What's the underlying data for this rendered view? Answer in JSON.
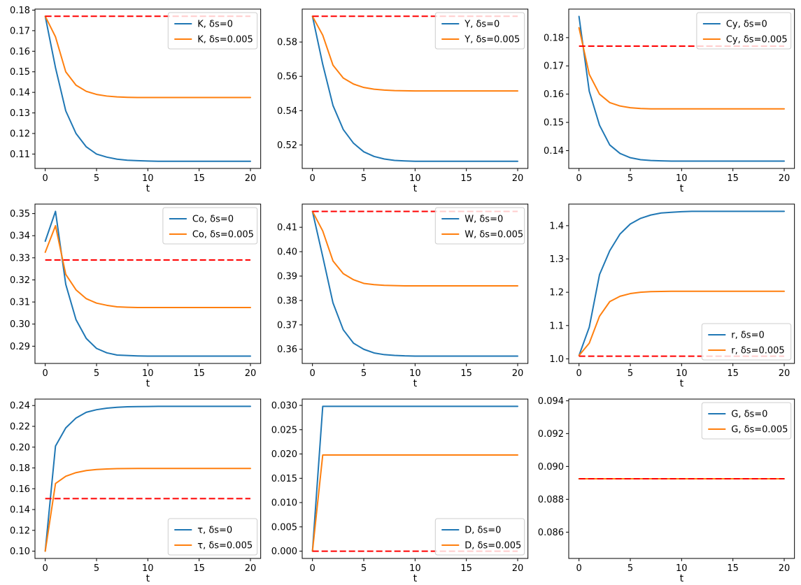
{
  "figure": {
    "background": "#ffffff",
    "xlabel": "t",
    "xlim": [
      -1,
      21
    ],
    "xticks": [
      0,
      5,
      10,
      15,
      20
    ],
    "colors": {
      "series1": "#1f77b4",
      "series2": "#ff7f0e",
      "steady_state_dashed": "#ff0000"
    },
    "legend_labels_pattern": "var, δs=0 / var, δs=0.005",
    "grid": false
  },
  "chart_data": [
    {
      "type": "line",
      "name": "K",
      "xlabel": "t",
      "legend_pos": "upper-right",
      "x": [
        0,
        1,
        2,
        3,
        4,
        5,
        6,
        7,
        8,
        9,
        10,
        11,
        12,
        13,
        14,
        15,
        16,
        17,
        18,
        19,
        20
      ],
      "ylim": [
        0.103,
        0.1805
      ],
      "yticks": [
        0.11,
        0.12,
        0.13,
        0.14,
        0.15,
        0.16,
        0.17,
        0.18
      ],
      "ytick_decimals": 2,
      "dashed_value": 0.177,
      "series": [
        {
          "name": "K, δs=0",
          "color": "#1f77b4",
          "values": [
            0.177,
            0.152,
            0.131,
            0.12,
            0.1135,
            0.11,
            0.1085,
            0.1075,
            0.107,
            0.1068,
            0.1066,
            0.1065,
            0.1065,
            0.1065,
            0.1065,
            0.1065,
            0.1065,
            0.1065,
            0.1065,
            0.1065,
            0.1065
          ]
        },
        {
          "name": "K, δs=0.005",
          "color": "#ff7f0e",
          "values": [
            0.177,
            0.167,
            0.15,
            0.1435,
            0.1405,
            0.139,
            0.1382,
            0.1378,
            0.1376,
            0.1375,
            0.1375,
            0.1375,
            0.1375,
            0.1375,
            0.1375,
            0.1375,
            0.1375,
            0.1375,
            0.1375,
            0.1375,
            0.1375
          ]
        }
      ]
    },
    {
      "type": "line",
      "name": "Y",
      "xlabel": "t",
      "legend_pos": "upper-right",
      "x": [
        0,
        1,
        2,
        3,
        4,
        5,
        6,
        7,
        8,
        9,
        10,
        11,
        12,
        13,
        14,
        15,
        16,
        17,
        18,
        19,
        20
      ],
      "ylim": [
        0.5063,
        0.5992
      ],
      "yticks": [
        0.52,
        0.54,
        0.56,
        0.58
      ],
      "ytick_decimals": 2,
      "dashed_value": 0.595,
      "series": [
        {
          "name": "Y, δs=0",
          "color": "#1f77b4",
          "values": [
            0.595,
            0.567,
            0.543,
            0.529,
            0.521,
            0.516,
            0.5133,
            0.5118,
            0.511,
            0.5107,
            0.5105,
            0.5105,
            0.5105,
            0.5105,
            0.5105,
            0.5105,
            0.5105,
            0.5105,
            0.5105,
            0.5105,
            0.5105
          ]
        },
        {
          "name": "Y, δs=0.005",
          "color": "#ff7f0e",
          "values": [
            0.595,
            0.584,
            0.5665,
            0.559,
            0.5555,
            0.5535,
            0.5525,
            0.552,
            0.5517,
            0.5516,
            0.5515,
            0.5515,
            0.5515,
            0.5515,
            0.5515,
            0.5515,
            0.5515,
            0.5515,
            0.5515,
            0.5515,
            0.5515
          ]
        }
      ]
    },
    {
      "type": "line",
      "name": "Cy",
      "xlabel": "t",
      "legend_pos": "upper-right",
      "x": [
        0,
        1,
        2,
        3,
        4,
        5,
        6,
        7,
        8,
        9,
        10,
        11,
        12,
        13,
        14,
        15,
        16,
        17,
        18,
        19,
        20
      ],
      "ylim": [
        0.1337,
        0.1901
      ],
      "yticks": [
        0.14,
        0.15,
        0.16,
        0.17,
        0.18
      ],
      "ytick_decimals": 2,
      "dashed_value": 0.177,
      "series": [
        {
          "name": "Cy, δs=0",
          "color": "#1f77b4",
          "values": [
            0.1875,
            0.161,
            0.149,
            0.142,
            0.139,
            0.1375,
            0.1368,
            0.1365,
            0.1364,
            0.1363,
            0.1363,
            0.1363,
            0.1363,
            0.1363,
            0.1363,
            0.1363,
            0.1363,
            0.1363,
            0.1363,
            0.1363,
            0.1363
          ]
        },
        {
          "name": "Cy, δs=0.005",
          "color": "#ff7f0e",
          "values": [
            0.1835,
            0.167,
            0.16,
            0.157,
            0.1558,
            0.1552,
            0.1549,
            0.1548,
            0.1548,
            0.1548,
            0.1548,
            0.1548,
            0.1548,
            0.1548,
            0.1548,
            0.1548,
            0.1548,
            0.1548,
            0.1548,
            0.1548,
            0.1548
          ]
        }
      ]
    },
    {
      "type": "line",
      "name": "Co",
      "xlabel": "t",
      "legend_pos": "upper-right",
      "x": [
        0,
        1,
        2,
        3,
        4,
        5,
        6,
        7,
        8,
        9,
        10,
        11,
        12,
        13,
        14,
        15,
        16,
        17,
        18,
        19,
        20
      ],
      "ylim": [
        0.2822,
        0.3543
      ],
      "yticks": [
        0.29,
        0.3,
        0.31,
        0.32,
        0.33,
        0.34,
        0.35
      ],
      "ytick_decimals": 2,
      "dashed_value": 0.329,
      "series": [
        {
          "name": "Co, δs=0",
          "color": "#1f77b4",
          "values": [
            0.3375,
            0.351,
            0.318,
            0.302,
            0.2935,
            0.289,
            0.287,
            0.286,
            0.2858,
            0.2856,
            0.2855,
            0.2855,
            0.2855,
            0.2855,
            0.2855,
            0.2855,
            0.2855,
            0.2855,
            0.2855,
            0.2855,
            0.2855
          ]
        },
        {
          "name": "Co, δs=0.005",
          "color": "#ff7f0e",
          "values": [
            0.3325,
            0.3445,
            0.3225,
            0.3155,
            0.3115,
            0.3095,
            0.3085,
            0.3078,
            0.3076,
            0.3075,
            0.3075,
            0.3075,
            0.3075,
            0.3075,
            0.3075,
            0.3075,
            0.3075,
            0.3075,
            0.3075,
            0.3075,
            0.3075
          ]
        }
      ]
    },
    {
      "type": "line",
      "name": "W",
      "xlabel": "t",
      "legend_pos": "upper-right",
      "x": [
        0,
        1,
        2,
        3,
        4,
        5,
        6,
        7,
        8,
        9,
        10,
        11,
        12,
        13,
        14,
        15,
        16,
        17,
        18,
        19,
        20
      ],
      "ylim": [
        0.3542,
        0.4195
      ],
      "yticks": [
        0.36,
        0.37,
        0.38,
        0.39,
        0.4,
        0.41
      ],
      "ytick_decimals": 2,
      "dashed_value": 0.4165,
      "series": [
        {
          "name": "W, δs=0",
          "color": "#1f77b4",
          "values": [
            0.4165,
            0.398,
            0.379,
            0.368,
            0.3625,
            0.36,
            0.3585,
            0.3578,
            0.3575,
            0.3573,
            0.3572,
            0.3572,
            0.3572,
            0.3572,
            0.3572,
            0.3572,
            0.3572,
            0.3572,
            0.3572,
            0.3572,
            0.3572
          ]
        },
        {
          "name": "W, δs=0.005",
          "color": "#ff7f0e",
          "values": [
            0.4165,
            0.4085,
            0.3962,
            0.391,
            0.3885,
            0.387,
            0.3865,
            0.3862,
            0.3861,
            0.386,
            0.386,
            0.386,
            0.386,
            0.386,
            0.386,
            0.386,
            0.386,
            0.386,
            0.386,
            0.386,
            0.386
          ]
        }
      ]
    },
    {
      "type": "line",
      "name": "r",
      "xlabel": "t",
      "legend_pos": "lower-right",
      "x": [
        0,
        1,
        2,
        3,
        4,
        5,
        6,
        7,
        8,
        9,
        10,
        11,
        12,
        13,
        14,
        15,
        16,
        17,
        18,
        19,
        20
      ],
      "ylim": [
        0.9862,
        1.4648
      ],
      "yticks": [
        1.0,
        1.1,
        1.2,
        1.3,
        1.4
      ],
      "ytick_decimals": 1,
      "dashed_value": 1.008,
      "series": [
        {
          "name": "r, δs=0",
          "color": "#1f77b4",
          "values": [
            1.01,
            1.095,
            1.253,
            1.325,
            1.375,
            1.405,
            1.422,
            1.432,
            1.438,
            1.44,
            1.442,
            1.443,
            1.443,
            1.443,
            1.443,
            1.443,
            1.443,
            1.443,
            1.443,
            1.443,
            1.443
          ]
        },
        {
          "name": "r, δs=0.005",
          "color": "#ff7f0e",
          "values": [
            1.01,
            1.047,
            1.128,
            1.172,
            1.188,
            1.196,
            1.2,
            1.202,
            1.2025,
            1.203,
            1.203,
            1.203,
            1.203,
            1.203,
            1.203,
            1.203,
            1.203,
            1.203,
            1.203,
            1.203,
            1.203
          ]
        }
      ]
    },
    {
      "type": "line",
      "name": "τ",
      "xlabel": "t",
      "legend_pos": "lower-right",
      "x": [
        0,
        1,
        2,
        3,
        4,
        5,
        6,
        7,
        8,
        9,
        10,
        11,
        12,
        13,
        14,
        15,
        16,
        17,
        18,
        19,
        20
      ],
      "ylim": [
        0.093,
        0.2462
      ],
      "yticks": [
        0.1,
        0.12,
        0.14,
        0.16,
        0.18,
        0.2,
        0.22,
        0.24
      ],
      "ytick_decimals": 2,
      "dashed_value": 0.1505,
      "series": [
        {
          "name": "τ, δs=0",
          "color": "#1f77b4",
          "values": [
            0.1,
            0.201,
            0.2185,
            0.228,
            0.2335,
            0.236,
            0.2375,
            0.2383,
            0.2388,
            0.239,
            0.2391,
            0.2392,
            0.2392,
            0.2392,
            0.2392,
            0.2392,
            0.2392,
            0.2392,
            0.2392,
            0.2392,
            0.2392
          ]
        },
        {
          "name": "τ, δs=0.005",
          "color": "#ff7f0e",
          "values": [
            0.1,
            0.165,
            0.172,
            0.1755,
            0.1775,
            0.1785,
            0.179,
            0.1793,
            0.1794,
            0.1795,
            0.1795,
            0.1795,
            0.1795,
            0.1795,
            0.1795,
            0.1795,
            0.1795,
            0.1795,
            0.1795,
            0.1795,
            0.1795
          ]
        }
      ]
    },
    {
      "type": "line",
      "name": "D",
      "xlabel": "t",
      "legend_pos": "lower-right",
      "x": [
        0,
        1,
        2,
        3,
        4,
        5,
        6,
        7,
        8,
        9,
        10,
        11,
        12,
        13,
        14,
        15,
        16,
        17,
        18,
        19,
        20
      ],
      "ylim": [
        -0.0015,
        0.0313
      ],
      "yticks": [
        0.0,
        0.005,
        0.01,
        0.015,
        0.02,
        0.025,
        0.03
      ],
      "ytick_decimals": 3,
      "dashed_value": 0.0,
      "series": [
        {
          "name": "D, δs=0",
          "color": "#1f77b4",
          "values": [
            0.0,
            0.0298,
            0.0298,
            0.0298,
            0.0298,
            0.0298,
            0.0298,
            0.0298,
            0.0298,
            0.0298,
            0.0298,
            0.0298,
            0.0298,
            0.0298,
            0.0298,
            0.0298,
            0.0298,
            0.0298,
            0.0298,
            0.0298,
            0.0298
          ]
        },
        {
          "name": "D, δs=0.005",
          "color": "#ff7f0e",
          "values": [
            0.0,
            0.0198,
            0.0198,
            0.0198,
            0.0198,
            0.0198,
            0.0198,
            0.0198,
            0.0198,
            0.0198,
            0.0198,
            0.0198,
            0.0198,
            0.0198,
            0.0198,
            0.0198,
            0.0198,
            0.0198,
            0.0198,
            0.0198,
            0.0198
          ]
        }
      ]
    },
    {
      "type": "line",
      "name": "G",
      "xlabel": "t",
      "legend_pos": "upper-right",
      "x": [
        0,
        1,
        2,
        3,
        4,
        5,
        6,
        7,
        8,
        9,
        10,
        11,
        12,
        13,
        14,
        15,
        16,
        17,
        18,
        19,
        20
      ],
      "ylim": [
        0.0844,
        0.0941
      ],
      "yticks": [
        0.086,
        0.088,
        0.09,
        0.092,
        0.094
      ],
      "ytick_decimals": 3,
      "dashed_value": 0.08925,
      "series": [
        {
          "name": "G, δs=0",
          "color": "#1f77b4",
          "values": [
            0.08925,
            0.08925,
            0.08925,
            0.08925,
            0.08925,
            0.08925,
            0.08925,
            0.08925,
            0.08925,
            0.08925,
            0.08925,
            0.08925,
            0.08925,
            0.08925,
            0.08925,
            0.08925,
            0.08925,
            0.08925,
            0.08925,
            0.08925,
            0.08925
          ]
        },
        {
          "name": "G, δs=0.005",
          "color": "#ff7f0e",
          "values": [
            0.08925,
            0.08925,
            0.08925,
            0.08925,
            0.08925,
            0.08925,
            0.08925,
            0.08925,
            0.08925,
            0.08925,
            0.08925,
            0.08925,
            0.08925,
            0.08925,
            0.08925,
            0.08925,
            0.08925,
            0.08925,
            0.08925,
            0.08925,
            0.08925
          ]
        }
      ]
    }
  ]
}
